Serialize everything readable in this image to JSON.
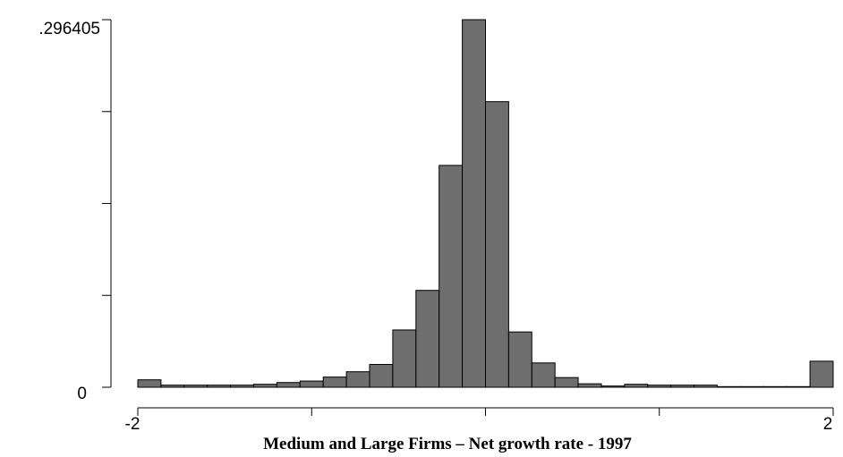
{
  "chart_data": {
    "type": "bar",
    "title": "",
    "xlabel": "Medium and Large Firms – Net growth rate - 1997",
    "ylabel": "",
    "xlim": [
      -2,
      2
    ],
    "ylim": [
      0,
      0.296405
    ],
    "y_tick_labels": [
      ".296405",
      "0"
    ],
    "x_tick_labels": [
      "-2",
      "2"
    ],
    "y_ticks": [
      0,
      0.0741,
      0.1482,
      0.2223,
      0.296405
    ],
    "x_ticks": [
      -2,
      -1,
      0,
      1,
      2
    ],
    "grid": false,
    "bar_color": "#6e6e6e",
    "bin_width": 0.1333,
    "bins_start": [
      -2.0,
      -1.8667,
      -1.7333,
      -1.6,
      -1.4667,
      -1.3333,
      -1.2,
      -1.0667,
      -0.9333,
      -0.8,
      -0.6667,
      -0.5333,
      -0.4,
      -0.2667,
      -0.1333,
      0.0,
      0.1333,
      0.2667,
      0.4,
      0.5333,
      0.6667,
      0.8,
      0.9333,
      1.0667,
      1.2,
      1.3333,
      1.4667,
      1.6,
      1.7333,
      1.8667
    ],
    "values": [
      0.006,
      0.0017,
      0.0017,
      0.0017,
      0.0017,
      0.0024,
      0.0038,
      0.005,
      0.0082,
      0.0125,
      0.0184,
      0.0462,
      0.0781,
      0.1789,
      0.2964,
      0.2303,
      0.0446,
      0.0196,
      0.0078,
      0.0028,
      0.001,
      0.0024,
      0.0017,
      0.0017,
      0.0017,
      0.0005,
      0.0005,
      0.0005,
      0.0005,
      0.021
    ]
  }
}
